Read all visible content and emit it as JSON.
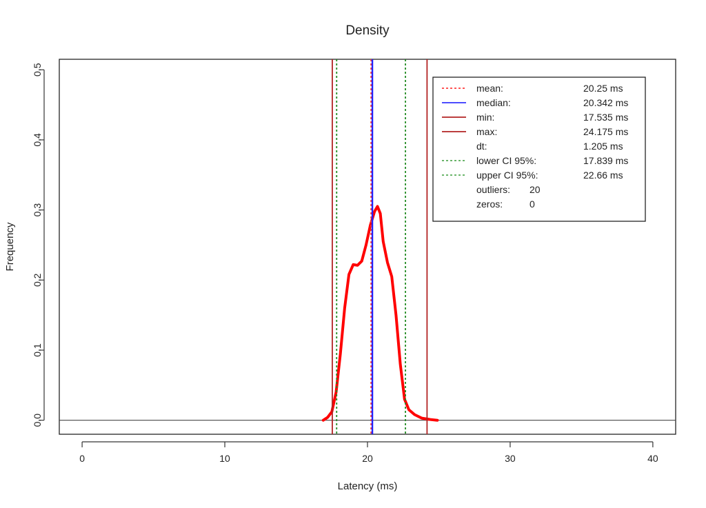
{
  "chart_data": {
    "type": "line",
    "title": "Density",
    "xlabel": "Latency (ms)",
    "ylabel": "Frequency",
    "xlim": [
      -1.6,
      41.6
    ],
    "ylim": [
      -0.02,
      0.515
    ],
    "x_ticks": [
      0,
      10,
      20,
      30,
      40
    ],
    "y_ticks": [
      0.0,
      0.1,
      0.2,
      0.3,
      0.4,
      0.5
    ],
    "x_tick_labels": [
      "0",
      "10",
      "20",
      "30",
      "40"
    ],
    "y_tick_labels": [
      "0.0",
      "0.1",
      "0.2",
      "0.3",
      "0.4",
      "0.5"
    ],
    "grid": false,
    "series": [
      {
        "color": "#ff0000",
        "x": [
          16.9,
          17.2,
          17.5,
          17.8,
          18.1,
          18.4,
          18.7,
          19.0,
          19.3,
          19.6,
          19.9,
          20.2,
          20.5,
          20.7,
          20.9,
          21.1,
          21.4,
          21.7,
          22.0,
          22.3,
          22.6,
          22.9,
          23.3,
          23.8,
          24.4,
          24.9
        ],
        "y": [
          0.0,
          0.004,
          0.012,
          0.04,
          0.095,
          0.16,
          0.208,
          0.222,
          0.221,
          0.227,
          0.25,
          0.278,
          0.298,
          0.305,
          0.295,
          0.255,
          0.225,
          0.205,
          0.15,
          0.08,
          0.03,
          0.015,
          0.008,
          0.003,
          0.001,
          0.0
        ]
      }
    ],
    "vertical_lines": [
      {
        "kind": "mean",
        "x": 20.25,
        "color": "#ff3b3b",
        "style": "dotted"
      },
      {
        "kind": "median",
        "x": 20.342,
        "color": "#2222ff",
        "style": "solid"
      },
      {
        "kind": "min",
        "x": 17.535,
        "color": "#b22222",
        "style": "solid"
      },
      {
        "kind": "max",
        "x": 24.175,
        "color": "#b22222",
        "style": "solid"
      },
      {
        "kind": "lower",
        "x": 17.839,
        "color": "#228b22",
        "style": "dotted"
      },
      {
        "kind": "upper",
        "x": 22.66,
        "color": "#228b22",
        "style": "dotted"
      }
    ],
    "baseline_y": 0.0,
    "legend_position": "top-right",
    "legend": [
      {
        "label": "mean:",
        "value": "20.25 ms",
        "line_color": "#ff3b3b",
        "line_style": "dotted"
      },
      {
        "label": "median:",
        "value": "20.342 ms",
        "line_color": "#3333ff",
        "line_style": "solid"
      },
      {
        "label": "min:",
        "value": "17.535 ms",
        "line_color": "#b22222",
        "line_style": "solid"
      },
      {
        "label": "max:",
        "value": "24.175 ms",
        "line_color": "#b22222",
        "line_style": "solid"
      },
      {
        "label": "dt:",
        "value": "1.205 ms",
        "line_color": "",
        "line_style": "none"
      },
      {
        "label": "lower CI 95%:",
        "value": "17.839 ms",
        "line_color": "#55aa55",
        "line_style": "dotted"
      },
      {
        "label": "upper CI 95%:",
        "value": "22.66 ms",
        "line_color": "#55aa55",
        "line_style": "dotted"
      },
      {
        "label": "outliers:",
        "value": "20",
        "line_color": "",
        "line_style": "none",
        "inline": true
      },
      {
        "label": "zeros:",
        "value": "0",
        "line_color": "",
        "line_style": "none",
        "inline": true
      }
    ]
  }
}
